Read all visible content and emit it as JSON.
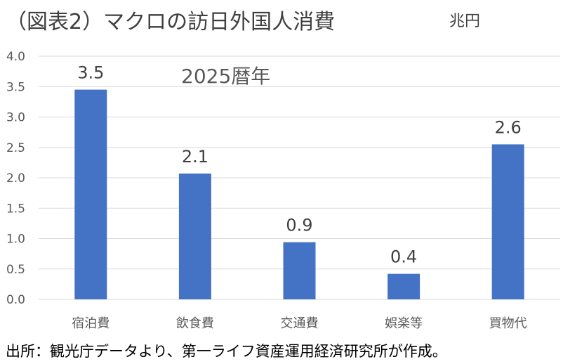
{
  "title": "（図表2）マクロの訪日外国人消費",
  "unit": "兆円",
  "source": "出所：観光庁データより、第一ライフ資産運用経済研究所が作成。",
  "chart_data": {
    "type": "bar",
    "title": "（図表2）マクロの訪日外国人消費",
    "ylabel": "兆円",
    "categories": [
      "宿泊費",
      "飲食費",
      "交通費",
      "娯楽等",
      "買物代"
    ],
    "values": [
      3.45,
      2.07,
      0.94,
      0.42,
      2.55
    ],
    "data_labels": [
      "3.5",
      "2.1",
      "0.9",
      "0.4",
      "2.6"
    ],
    "yticks": [
      "0.0",
      "0.5",
      "1.0",
      "1.5",
      "2.0",
      "2.5",
      "3.0",
      "3.5",
      "4.0"
    ],
    "ylim": [
      0,
      4.0
    ],
    "annotation": "2025暦年",
    "grid": true,
    "legend": "none",
    "colors": {
      "bar": "#4472C4",
      "grid": "#D9D9D9"
    }
  }
}
